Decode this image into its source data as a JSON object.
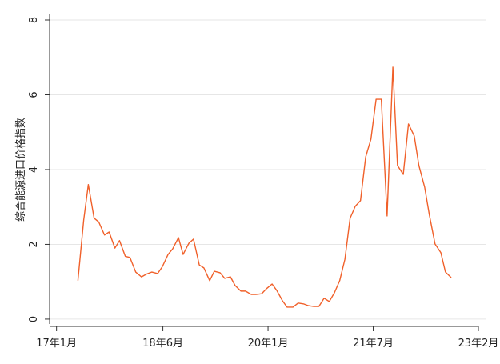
{
  "chart_data": {
    "type": "line",
    "y_label": "综合能源进口价格指数",
    "xlim": [
      -1.2,
      73
    ],
    "ylim": [
      -0.13,
      8.15
    ],
    "xticks": [
      {
        "value": 0,
        "label": "17年1月"
      },
      {
        "value": 18.4,
        "label": "18年6月"
      },
      {
        "value": 36.6,
        "label": "20年1月"
      },
      {
        "value": 54.8,
        "label": "21年7月"
      },
      {
        "value": 73,
        "label": "23年2月"
      }
    ],
    "yticks": [
      0,
      2,
      4,
      6,
      8
    ],
    "grid": true,
    "x": [
      3.7,
      4.7,
      5.5,
      6.5,
      7.3,
      8.3,
      9.1,
      10.1,
      10.9,
      11.9,
      12.7,
      13.7,
      14.7,
      15.5,
      16.5,
      17.5,
      18.3,
      19.3,
      20.1,
      21.1,
      21.9,
      22.9,
      23.7,
      24.7,
      25.5,
      26.5,
      27.3,
      28.3,
      29.1,
      30.1,
      30.9,
      31.9,
      32.7,
      33.7,
      34.5,
      35.5,
      36.3,
      37.3,
      38.1,
      39.1,
      39.9,
      40.9,
      41.8,
      42.7,
      43.6,
      44.5,
      45.4,
      46.3,
      47.2,
      48.1,
      49.0,
      49.9,
      50.8,
      51.7,
      52.6,
      53.5,
      54.4,
      55.3,
      56.2,
      57.2,
      58.2,
      59.0,
      60.0,
      60.9,
      61.9,
      62.7,
      63.7,
      64.5,
      65.5,
      66.5,
      67.3,
      68.3
    ],
    "series": [
      {
        "color": "#f0602a",
        "values": [
          1.03,
          2.65,
          3.6,
          2.7,
          2.6,
          2.25,
          2.33,
          1.9,
          2.1,
          1.68,
          1.65,
          1.26,
          1.13,
          1.2,
          1.26,
          1.22,
          1.4,
          1.73,
          1.88,
          2.18,
          1.73,
          2.03,
          2.14,
          1.45,
          1.37,
          1.03,
          1.28,
          1.24,
          1.09,
          1.13,
          0.9,
          0.75,
          0.75,
          0.66,
          0.66,
          0.68,
          0.81,
          0.94,
          0.77,
          0.49,
          0.32,
          0.32,
          0.43,
          0.41,
          0.36,
          0.34,
          0.34,
          0.56,
          0.47,
          0.71,
          1.03,
          1.6,
          2.7,
          3.02,
          3.17,
          4.34,
          4.81,
          5.88,
          5.88,
          2.76,
          6.74,
          4.11,
          3.87,
          5.22,
          4.9,
          4.11,
          3.53,
          2.8,
          2.01,
          1.78,
          1.26,
          1.11
        ]
      }
    ]
  }
}
